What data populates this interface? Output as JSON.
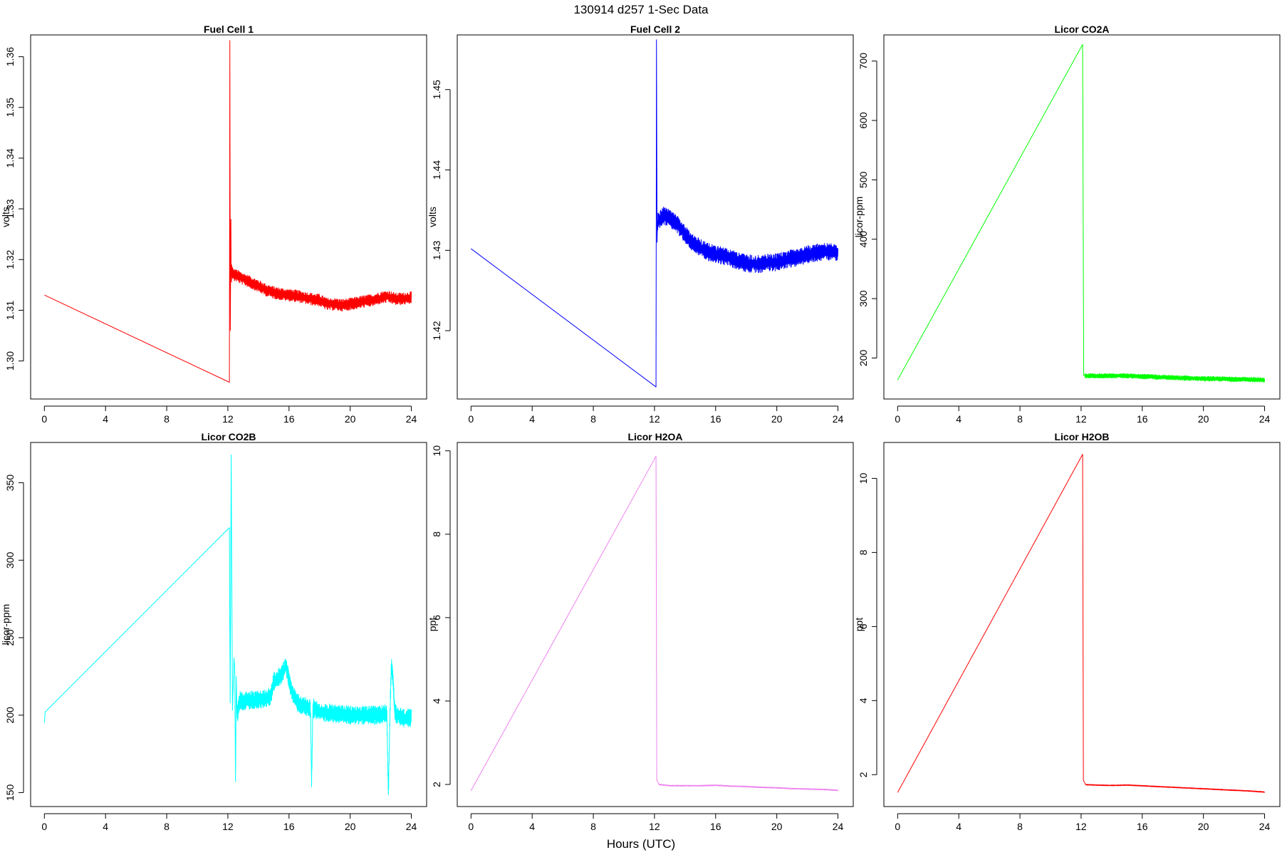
{
  "figure": {
    "title": "130914   d257   1-Sec Data",
    "xlabel": "Hours (UTC)"
  },
  "chart_data": [
    {
      "type": "line",
      "title": "Fuel Cell 1",
      "ylabel": "volts",
      "color": "#ff0000",
      "xlim": [
        -0.9,
        25
      ],
      "ylim": [
        1.2925,
        1.3643
      ],
      "xticks": [
        "0",
        "4",
        "8",
        "12",
        "16",
        "20",
        "24"
      ],
      "yticks": [
        "1.30",
        "1.31",
        "1.32",
        "1.33",
        "1.34",
        "1.35",
        "1.36"
      ],
      "x": [
        0,
        12.1,
        12.13,
        12.16,
        12.2,
        12.22,
        12.25,
        12.35,
        12.6,
        13.0,
        13.5,
        14.0,
        14.5,
        15.0,
        15.5,
        16.0,
        16.5,
        17.0,
        17.5,
        18.0,
        18.5,
        19.0,
        19.5,
        20.0,
        20.5,
        21.0,
        21.5,
        22.0,
        22.5,
        23.0,
        23.5,
        24.0
      ],
      "y": [
        1.313,
        1.2958,
        1.3632,
        1.306,
        1.327,
        1.3145,
        1.318,
        1.317,
        1.3168,
        1.3162,
        1.3155,
        1.3148,
        1.314,
        1.3135,
        1.3132,
        1.313,
        1.3128,
        1.3125,
        1.3122,
        1.312,
        1.3112,
        1.3112,
        1.311,
        1.3112,
        1.3115,
        1.3118,
        1.312,
        1.3125,
        1.3127,
        1.3122,
        1.3123,
        1.3125
      ],
      "noise_from_x": 12.2,
      "noise_amplitude": 0.0012
    },
    {
      "type": "line",
      "title": "Fuel Cell 2",
      "ylabel": "volts",
      "color": "#0000ff",
      "xlim": [
        -0.9,
        25
      ],
      "ylim": [
        1.4115,
        1.4568
      ],
      "xticks": [
        "0",
        "4",
        "8",
        "12",
        "16",
        "20",
        "24"
      ],
      "yticks": [
        "1.42",
        "1.43",
        "1.44",
        "1.45"
      ],
      "x": [
        0,
        12.1,
        12.13,
        12.17,
        12.22,
        12.3,
        12.6,
        13.0,
        13.5,
        14.0,
        14.5,
        15.0,
        15.5,
        16.0,
        16.5,
        17.0,
        17.5,
        18.0,
        18.5,
        19.0,
        19.5,
        20.0,
        20.5,
        21.0,
        21.5,
        22.0,
        22.5,
        23.0,
        23.5,
        24.0
      ],
      "y": [
        1.4302,
        1.413,
        1.4562,
        1.431,
        1.434,
        1.4338,
        1.4343,
        1.434,
        1.4332,
        1.432,
        1.431,
        1.4303,
        1.4298,
        1.4295,
        1.4293,
        1.429,
        1.4287,
        1.4284,
        1.4283,
        1.4283,
        1.4285,
        1.4285,
        1.4288,
        1.429,
        1.4292,
        1.4295,
        1.4297,
        1.4298,
        1.4298,
        1.4298
      ],
      "noise_from_x": 12.2,
      "noise_amplitude": 0.0011
    },
    {
      "type": "line",
      "title": "Licor CO2A",
      "ylabel": "licor-ppm",
      "color": "#00ff00",
      "xlim": [
        -0.9,
        25
      ],
      "ylim": [
        131,
        744
      ],
      "xticks": [
        "0",
        "4",
        "8",
        "12",
        "16",
        "20",
        "24"
      ],
      "yticks": [
        "200",
        "300",
        "400",
        "500",
        "600",
        "700"
      ],
      "x": [
        0,
        12.1,
        12.17,
        12.25,
        13,
        14,
        15,
        16,
        17,
        18,
        19,
        20,
        21,
        22,
        23,
        24
      ],
      "y": [
        163,
        728,
        171,
        170,
        170,
        170,
        170,
        169,
        168,
        167,
        166,
        165,
        165,
        164,
        164,
        163
      ],
      "noise_from_x": 12.25,
      "noise_amplitude": 4
    },
    {
      "type": "line",
      "title": "Licor CO2B",
      "ylabel": "licor-ppm",
      "color": "#00ffff",
      "xlim": [
        -0.9,
        25
      ],
      "ylim": [
        141,
        376
      ],
      "xticks": [
        "0",
        "4",
        "8",
        "12",
        "16",
        "20",
        "24"
      ],
      "yticks": [
        "150",
        "200",
        "250",
        "300",
        "350"
      ],
      "x": [
        0,
        0.05,
        12.1,
        12.15,
        12.22,
        12.3,
        12.4,
        12.45,
        12.5,
        12.55,
        12.6,
        12.8,
        13,
        14,
        14.8,
        15.0,
        15.5,
        15.8,
        16.1,
        16.5,
        17.0,
        17.4,
        17.48,
        17.55,
        17.62,
        17.7,
        18.0,
        19.0,
        20.0,
        21.0,
        22.0,
        22.4,
        22.5,
        22.6,
        22.7,
        22.8,
        22.9,
        23.0,
        23.5,
        24.0
      ],
      "y": [
        195,
        202,
        321,
        208,
        368,
        203,
        237,
        230,
        157,
        225,
        200,
        210,
        209,
        210,
        212,
        222,
        226,
        232,
        218,
        208,
        206,
        204,
        154,
        200,
        205,
        204,
        202,
        201,
        200,
        200,
        200,
        202,
        148,
        200,
        233,
        222,
        205,
        200,
        198,
        198
      ],
      "noise_from_x": 12.6,
      "noise_amplitude": 6
    },
    {
      "type": "line",
      "title": "Licor H2OA",
      "ylabel": "ppt",
      "color": "#ee82ee",
      "xlim": [
        -0.9,
        25
      ],
      "ylim": [
        1.47,
        10.2
      ],
      "xticks": [
        "0",
        "4",
        "8",
        "12",
        "16",
        "20",
        "24"
      ],
      "yticks": [
        "2",
        "4",
        "6",
        "8",
        "10"
      ],
      "x": [
        0,
        12.1,
        12.15,
        12.3,
        13,
        14,
        15,
        16,
        17,
        18,
        19,
        20,
        21,
        22,
        23,
        24
      ],
      "y": [
        1.85,
        9.87,
        2.1,
        2.0,
        1.97,
        1.97,
        1.97,
        1.98,
        1.96,
        1.95,
        1.93,
        1.92,
        1.9,
        1.89,
        1.88,
        1.86
      ],
      "noise_from_x": 12.3,
      "noise_amplitude": 0.012
    },
    {
      "type": "line",
      "title": "Licor H2OB",
      "ylabel": "ppt",
      "color": "#ff0000",
      "xlim": [
        -0.9,
        25
      ],
      "ylim": [
        1.14,
        10.97
      ],
      "xticks": [
        "0",
        "4",
        "8",
        "12",
        "16",
        "20",
        "24"
      ],
      "yticks": [
        "2",
        "4",
        "6",
        "8",
        "10"
      ],
      "x": [
        0,
        12.1,
        12.15,
        12.3,
        13,
        14,
        15,
        16,
        17,
        18,
        19,
        20,
        21,
        22,
        23,
        24
      ],
      "y": [
        1.52,
        10.65,
        1.85,
        1.73,
        1.72,
        1.71,
        1.72,
        1.7,
        1.68,
        1.66,
        1.64,
        1.62,
        1.6,
        1.58,
        1.56,
        1.53
      ],
      "noise_from_x": 12.3,
      "noise_amplitude": 0.012
    }
  ]
}
